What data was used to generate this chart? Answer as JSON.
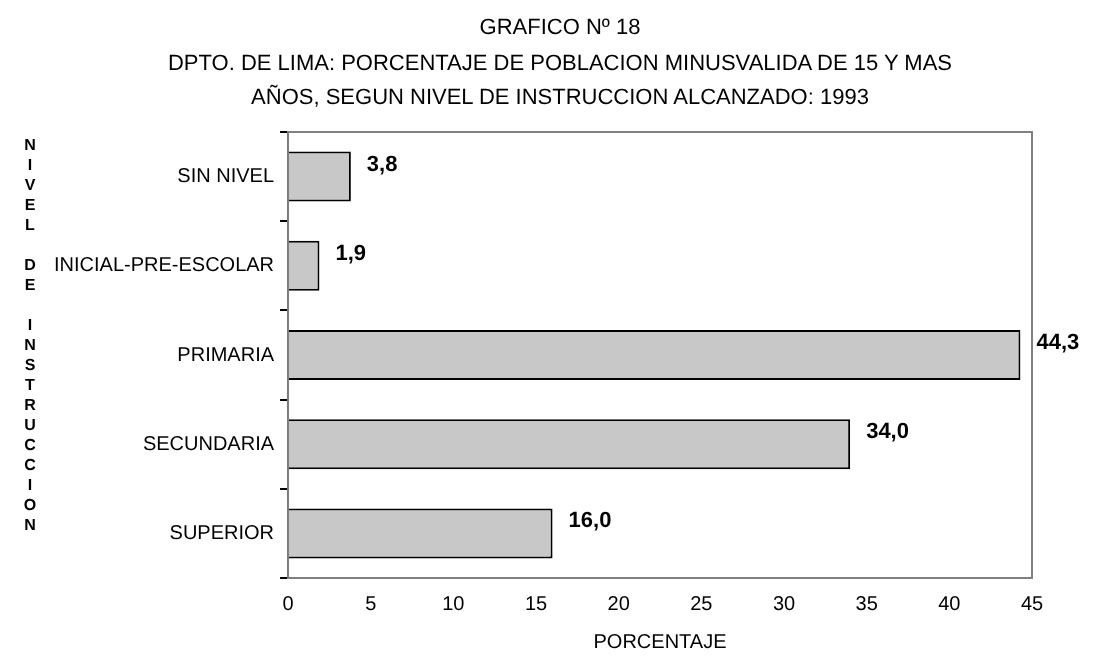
{
  "chart_data": {
    "type": "bar",
    "orientation": "horizontal",
    "title": "GRAFICO Nº 18",
    "subtitle": "DPTO. DE LIMA: PORCENTAJE DE POBLACION MINUSVALIDA DE 15 Y MAS AÑOS, SEGUN NIVEL DE INSTRUCCION ALCANZADO: 1993",
    "xlabel": "PORCENTAJE",
    "ylabel": "NIVEL DE INSTRUCCION",
    "categories": [
      "SIN NIVEL",
      "INICIAL-PRE-ESCOLAR",
      "PRIMARIA",
      "SECUNDARIA",
      "SUPERIOR"
    ],
    "values": [
      3.8,
      1.9,
      44.3,
      34.0,
      16.0
    ],
    "value_labels": [
      "3,8",
      "1,9",
      "44,3",
      "34,0",
      "16,0"
    ],
    "color": "#c8c8c8",
    "xlim": [
      0,
      45
    ],
    "xticks": [
      0,
      5,
      10,
      15,
      20,
      25,
      30,
      35,
      40,
      45
    ],
    "grid": false,
    "legend": false
  }
}
